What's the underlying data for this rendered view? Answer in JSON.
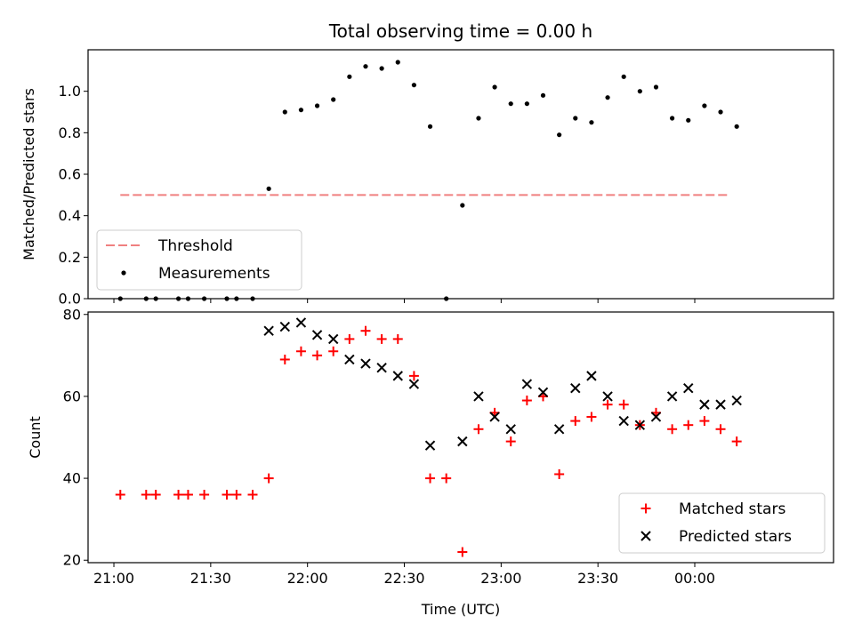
{
  "chart_data": [
    {
      "type": "scatter",
      "title": "Total observing time = 0.00 h",
      "ylabel": "Matched/Predicted stars",
      "xlabel": "",
      "xlim": [
        "20:52",
        "00:43"
      ],
      "ylim": [
        0,
        1.2
      ],
      "yticks": [
        "0.0",
        "0.2",
        "0.4",
        "0.6",
        "0.8",
        "1.0"
      ],
      "ytick_values": [
        0,
        0.2,
        0.4,
        0.6,
        0.8,
        1.0
      ],
      "legend": {
        "placement": "lower-left",
        "entries": [
          {
            "label": "Threshold",
            "marker": "dashed-line",
            "color": "#f08080"
          },
          {
            "label": "Measurements",
            "marker": "dot",
            "color": "#000000"
          }
        ]
      },
      "threshold": {
        "value": 0.5,
        "x_start": "21:02",
        "x_end": "00:11",
        "color": "#f08080"
      },
      "series": [
        {
          "name": "Measurements",
          "color": "#000000",
          "points": [
            [
              "21:02",
              0
            ],
            [
              "21:10",
              0
            ],
            [
              "21:13",
              0
            ],
            [
              "21:20",
              0
            ],
            [
              "21:23",
              0
            ],
            [
              "21:28",
              0
            ],
            [
              "21:35",
              0
            ],
            [
              "21:38",
              0
            ],
            [
              "21:43",
              0
            ],
            [
              "21:48",
              0.53
            ],
            [
              "21:53",
              0.9
            ],
            [
              "21:58",
              0.91
            ],
            [
              "22:03",
              0.93
            ],
            [
              "22:08",
              0.96
            ],
            [
              "22:13",
              1.07
            ],
            [
              "22:18",
              1.12
            ],
            [
              "22:23",
              1.11
            ],
            [
              "22:28",
              1.14
            ],
            [
              "22:33",
              1.03
            ],
            [
              "22:38",
              0.83
            ],
            [
              "22:43",
              0
            ],
            [
              "22:48",
              0.45
            ],
            [
              "22:53",
              0.87
            ],
            [
              "22:58",
              1.02
            ],
            [
              "23:03",
              0.94
            ],
            [
              "23:08",
              0.94
            ],
            [
              "23:13",
              0.98
            ],
            [
              "23:18",
              0.79
            ],
            [
              "23:23",
              0.87
            ],
            [
              "23:28",
              0.85
            ],
            [
              "23:33",
              0.97
            ],
            [
              "23:38",
              1.07
            ],
            [
              "23:43",
              1.0
            ],
            [
              "23:48",
              1.02
            ],
            [
              "23:53",
              0.87
            ],
            [
              "23:58",
              0.86
            ],
            [
              "00:03",
              0.93
            ],
            [
              "00:08",
              0.9
            ],
            [
              "00:13",
              0.83
            ]
          ]
        }
      ]
    },
    {
      "type": "scatter",
      "title": "",
      "ylabel": "Count",
      "xlabel": "Time (UTC)",
      "xlim": [
        "20:52",
        "00:43"
      ],
      "ylim": [
        19.4,
        80.6
      ],
      "yticks": [
        "20",
        "40",
        "60",
        "80"
      ],
      "ytick_values": [
        20,
        40,
        60,
        80
      ],
      "xticks": [
        "21:00",
        "21:30",
        "22:00",
        "22:30",
        "23:00",
        "23:30",
        "00:00"
      ],
      "xtick_values": [
        "21:00",
        "21:30",
        "22:00",
        "22:30",
        "23:00",
        "23:30",
        "00:00"
      ],
      "legend": {
        "placement": "lower-right",
        "entries": [
          {
            "label": "Matched stars",
            "marker": "plus",
            "color": "#ff0000"
          },
          {
            "label": "Predicted stars",
            "marker": "x",
            "color": "#000000"
          }
        ]
      },
      "series": [
        {
          "name": "Matched stars",
          "color": "#ff0000",
          "marker": "plus",
          "points": [
            [
              "21:02",
              36
            ],
            [
              "21:10",
              36
            ],
            [
              "21:13",
              36
            ],
            [
              "21:20",
              36
            ],
            [
              "21:23",
              36
            ],
            [
              "21:28",
              36
            ],
            [
              "21:35",
              36
            ],
            [
              "21:38",
              36
            ],
            [
              "21:43",
              36
            ],
            [
              "21:48",
              40
            ],
            [
              "21:53",
              69
            ],
            [
              "21:58",
              71
            ],
            [
              "22:03",
              70
            ],
            [
              "22:08",
              71
            ],
            [
              "22:13",
              74
            ],
            [
              "22:18",
              76
            ],
            [
              "22:23",
              74
            ],
            [
              "22:28",
              74
            ],
            [
              "22:33",
              65
            ],
            [
              "22:38",
              40
            ],
            [
              "22:43",
              40
            ],
            [
              "22:48",
              22
            ],
            [
              "22:53",
              52
            ],
            [
              "22:58",
              56
            ],
            [
              "23:03",
              49
            ],
            [
              "23:08",
              59
            ],
            [
              "23:13",
              60
            ],
            [
              "23:18",
              41
            ],
            [
              "23:23",
              54
            ],
            [
              "23:28",
              55
            ],
            [
              "23:33",
              58
            ],
            [
              "23:38",
              58
            ],
            [
              "23:43",
              53
            ],
            [
              "23:48",
              56
            ],
            [
              "23:53",
              52
            ],
            [
              "23:58",
              53
            ],
            [
              "00:03",
              54
            ],
            [
              "00:08",
              52
            ],
            [
              "00:13",
              49
            ]
          ]
        },
        {
          "name": "Predicted stars",
          "color": "#000000",
          "marker": "x",
          "points": [
            [
              "21:48",
              76
            ],
            [
              "21:53",
              77
            ],
            [
              "21:58",
              78
            ],
            [
              "22:03",
              75
            ],
            [
              "22:08",
              74
            ],
            [
              "22:13",
              69
            ],
            [
              "22:18",
              68
            ],
            [
              "22:23",
              67
            ],
            [
              "22:28",
              65
            ],
            [
              "22:33",
              63
            ],
            [
              "22:38",
              48
            ],
            [
              "22:48",
              49
            ],
            [
              "22:53",
              60
            ],
            [
              "22:58",
              55
            ],
            [
              "23:03",
              52
            ],
            [
              "23:08",
              63
            ],
            [
              "23:13",
              61
            ],
            [
              "23:18",
              52
            ],
            [
              "23:23",
              62
            ],
            [
              "23:28",
              65
            ],
            [
              "23:33",
              60
            ],
            [
              "23:38",
              54
            ],
            [
              "23:43",
              53
            ],
            [
              "23:48",
              55
            ],
            [
              "23:53",
              60
            ],
            [
              "23:58",
              62
            ],
            [
              "00:03",
              58
            ],
            [
              "00:08",
              58
            ],
            [
              "00:13",
              59
            ]
          ]
        }
      ]
    }
  ]
}
